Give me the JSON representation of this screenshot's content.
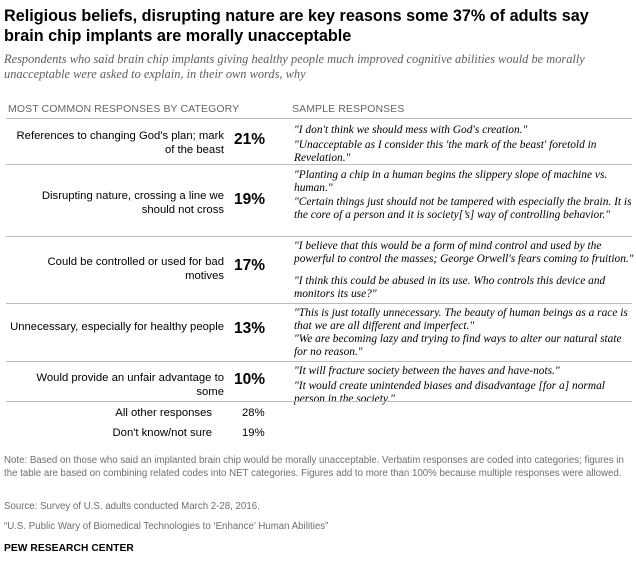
{
  "title": "Religious beliefs, disrupting nature are key reasons some 37% of adults say brain chip implants are morally unacceptable",
  "subtitle": "Respondents who said brain chip implants giving healthy people much improved cognitive abilities would be morally unacceptable were asked to explain, in their own words, why",
  "chart_data": {
    "type": "table",
    "column_headers": [
      "MOST COMMON RESPONSES BY CATEGORY",
      "SAMPLE RESPONSES"
    ],
    "rows": [
      {
        "category": "References to changing God's plan; mark of the beast",
        "value": "21%",
        "samples": [
          "\"I don't think we should mess with God's creation.\"",
          "\"Unacceptable as I consider this 'the mark of the beast' foretold in Revelation.\""
        ]
      },
      {
        "category": "Disrupting nature, crossing a line we should not cross",
        "value": "19%",
        "samples": [
          "\"Planting a chip in a human begins the slippery slope of machine vs. human.\"",
          "\"Certain things just should not be tampered with especially the brain. It is the core of a person and it is society[’s] way of controlling behavior.\""
        ]
      },
      {
        "category": "Could be controlled or used for bad motives",
        "value": "17%",
        "samples": [
          "\"I believe that this would be a form of mind control and used by the powerful to control the masses; George Orwell's fears coming to fruition.\"",
          "\"I think this could be abused in its use. Who controls this device and monitors its use?\""
        ]
      },
      {
        "category": "Unnecessary, especially for healthy people",
        "value": "13%",
        "samples": [
          "\"This is just totally unnecessary. The beauty of human beings as a race is that we are all different and imperfect.\"",
          "\"We are becoming lazy and trying to find ways to alter our natural state for no reason.\""
        ]
      },
      {
        "category": "Would provide an unfair advantage to some",
        "value": "10%",
        "samples": [
          "\"It will fracture society between the haves and have-nots.\"",
          "\"It would create unintended biases and disadvantage [for a] normal person in the society.\""
        ]
      }
    ],
    "other_rows": [
      {
        "category": "All other responses",
        "value": "28%"
      },
      {
        "category": "Don't know/not sure",
        "value": "19%"
      }
    ]
  },
  "note": "Note: Based on those who said an implanted brain chip would be morally unacceptable. Verbatim responses are coded into categories; figures in the table are based on combining related codes into NET categories. Figures add to more than 100% because multiple responses were allowed.",
  "source": "Source: Survey of U.S. adults conducted March 2-28, 2016.",
  "report": "“U.S. Public Wary of Biomedical Technologies to ‘Enhance’ Human Abilities”",
  "logo": "PEW RESEARCH CENTER"
}
